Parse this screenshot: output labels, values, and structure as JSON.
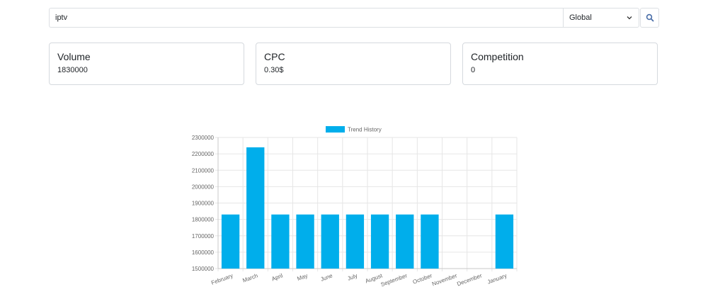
{
  "search": {
    "query": "iptv",
    "region": "Global"
  },
  "cards": {
    "volume": {
      "title": "Volume",
      "value": "1830000"
    },
    "cpc": {
      "title": "CPC",
      "value": "0.30$"
    },
    "competition": {
      "title": "Competition",
      "value": "0"
    }
  },
  "icons": {
    "dropdown": "chevron-down-icon",
    "search": "search-icon"
  },
  "chart_data": {
    "type": "bar",
    "legend": "Trend History",
    "color": "#00aeeb",
    "categories": [
      "February",
      "March",
      "April",
      "May",
      "June",
      "July",
      "August",
      "September",
      "October",
      "November",
      "December",
      "January"
    ],
    "values": [
      1830000,
      2240000,
      1830000,
      1830000,
      1830000,
      1830000,
      1830000,
      1830000,
      1830000,
      null,
      null,
      1830000
    ],
    "ylim": [
      1500000,
      2300000
    ],
    "yticks": [
      "1500000",
      "1600000",
      "1700000",
      "1800000",
      "1900000",
      "2000000",
      "2100000",
      "2200000",
      "2300000"
    ],
    "legend_position": "top",
    "grid": true
  }
}
